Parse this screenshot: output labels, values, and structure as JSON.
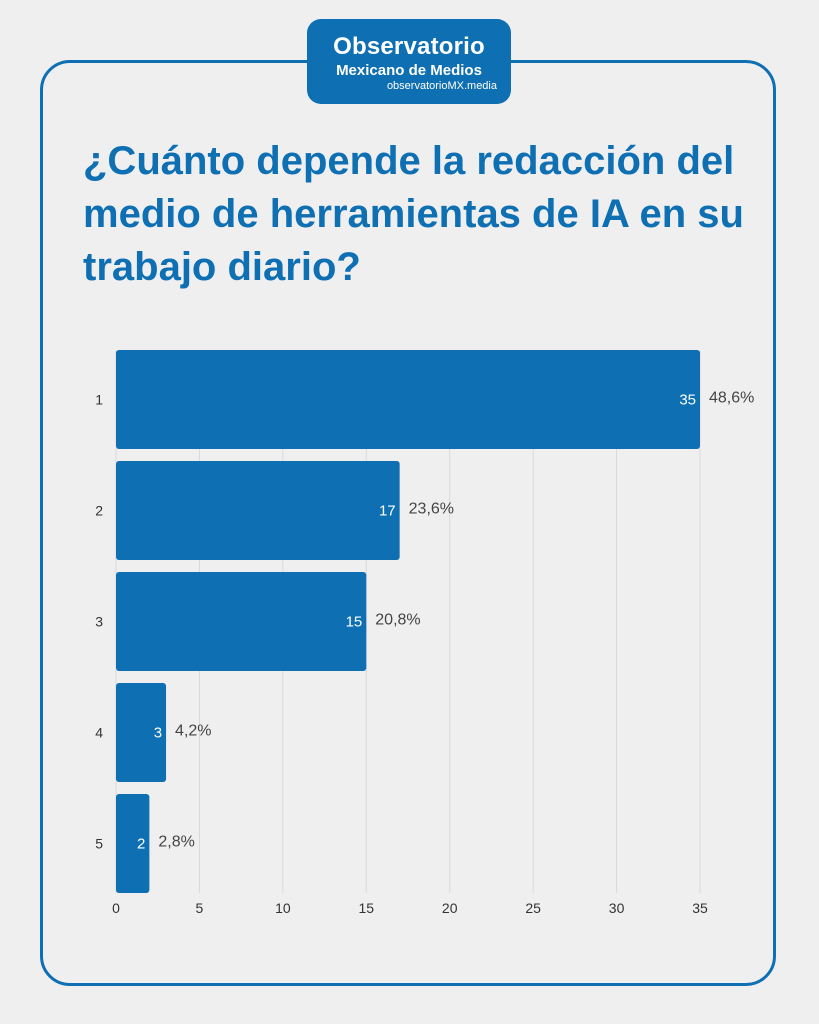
{
  "logo": {
    "line1": "Observatorio",
    "line2": "Mexicano de Medios",
    "line3": "observatorioMX.media"
  },
  "colors": {
    "accent": "#0e6fb3",
    "background": "#efeff0"
  },
  "chart_data": {
    "type": "bar",
    "orientation": "horizontal",
    "title": "¿Cuánto depende la redacción del medio de herramientas de IA en su trabajo diario?",
    "categories": [
      "1",
      "2",
      "3",
      "4",
      "5"
    ],
    "values": [
      35,
      17,
      15,
      3,
      2
    ],
    "value_labels": [
      "35",
      "17",
      "15",
      "3",
      "2"
    ],
    "percent_labels": [
      "48,6%",
      "23,6%",
      "20,8%",
      "4,2%",
      "2,8%"
    ],
    "xlim": [
      0,
      35
    ],
    "xticks": [
      "0",
      "5",
      "10",
      "15",
      "20",
      "25",
      "30",
      "35"
    ],
    "grid": true,
    "xlabel": "",
    "ylabel": ""
  }
}
